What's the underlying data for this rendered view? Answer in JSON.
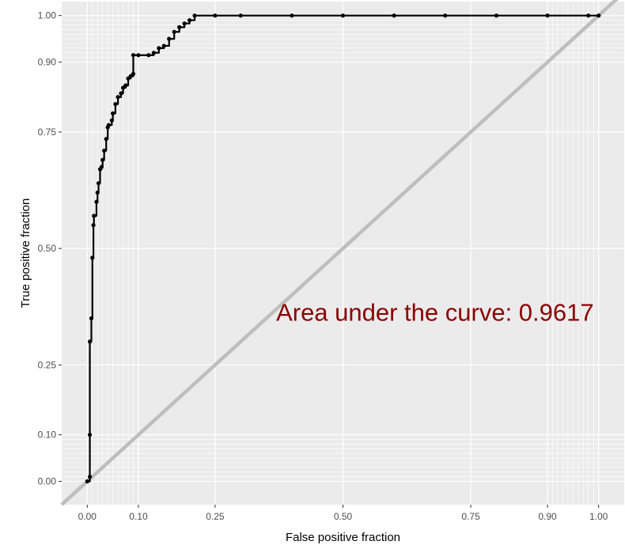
{
  "chart_data": {
    "type": "line",
    "xlabel": "False positive fraction",
    "ylabel": "True positive fraction",
    "xlim": [
      -0.05,
      1.05
    ],
    "ylim": [
      -0.05,
      1.03
    ],
    "major_ticks": [
      0.0,
      0.1,
      0.25,
      0.5,
      0.75,
      0.9,
      1.0
    ],
    "tick_labels": [
      "0.00",
      "0.10",
      "0.25",
      "0.50",
      "0.75",
      "0.90",
      "1.00"
    ],
    "minor_gridlines": [
      0.01,
      0.02,
      0.03,
      0.04,
      0.05,
      0.06,
      0.07,
      0.08,
      0.09,
      0.91,
      0.92,
      0.93,
      0.94,
      0.95,
      0.96,
      0.97,
      0.98,
      0.99
    ],
    "grid": true,
    "panel_background": "#EBEBEB",
    "grid_color": "#FFFFFF",
    "legend": "none",
    "annotation": {
      "text": "Area under the curve: 0.9617",
      "x": 0.68,
      "y": 0.345,
      "color": "#8B0000"
    },
    "series": [
      {
        "color": "#000000",
        "points": [
          [
            0.0,
            0.0
          ],
          [
            0.005,
            0.01
          ],
          [
            0.005,
            0.1
          ],
          [
            0.005,
            0.3
          ],
          [
            0.008,
            0.35
          ],
          [
            0.01,
            0.48
          ],
          [
            0.012,
            0.55
          ],
          [
            0.013,
            0.57
          ],
          [
            0.018,
            0.6
          ],
          [
            0.02,
            0.62
          ],
          [
            0.022,
            0.64
          ],
          [
            0.025,
            0.67
          ],
          [
            0.028,
            0.675
          ],
          [
            0.03,
            0.69
          ],
          [
            0.033,
            0.71
          ],
          [
            0.037,
            0.735
          ],
          [
            0.04,
            0.76
          ],
          [
            0.042,
            0.765
          ],
          [
            0.048,
            0.775
          ],
          [
            0.05,
            0.79
          ],
          [
            0.055,
            0.81
          ],
          [
            0.06,
            0.825
          ],
          [
            0.066,
            0.833
          ],
          [
            0.07,
            0.845
          ],
          [
            0.075,
            0.85
          ],
          [
            0.08,
            0.865
          ],
          [
            0.085,
            0.87
          ],
          [
            0.09,
            0.875
          ],
          [
            0.09,
            0.915
          ],
          [
            0.1,
            0.915
          ],
          [
            0.12,
            0.915
          ],
          [
            0.13,
            0.92
          ],
          [
            0.14,
            0.93
          ],
          [
            0.15,
            0.935
          ],
          [
            0.16,
            0.95
          ],
          [
            0.17,
            0.965
          ],
          [
            0.18,
            0.975
          ],
          [
            0.19,
            0.983
          ],
          [
            0.2,
            0.99
          ],
          [
            0.21,
            1.0
          ],
          [
            0.25,
            1.0
          ],
          [
            0.3,
            1.0
          ],
          [
            0.4,
            1.0
          ],
          [
            0.5,
            1.0
          ],
          [
            0.6,
            1.0
          ],
          [
            0.7,
            1.0
          ],
          [
            0.8,
            1.0
          ],
          [
            0.9,
            1.0
          ],
          [
            0.98,
            1.0
          ],
          [
            1.0,
            1.0
          ]
        ]
      },
      {
        "color": "#BEBEBE",
        "points": [
          [
            -0.05,
            -0.05
          ],
          [
            1.05,
            1.05
          ]
        ]
      }
    ]
  }
}
